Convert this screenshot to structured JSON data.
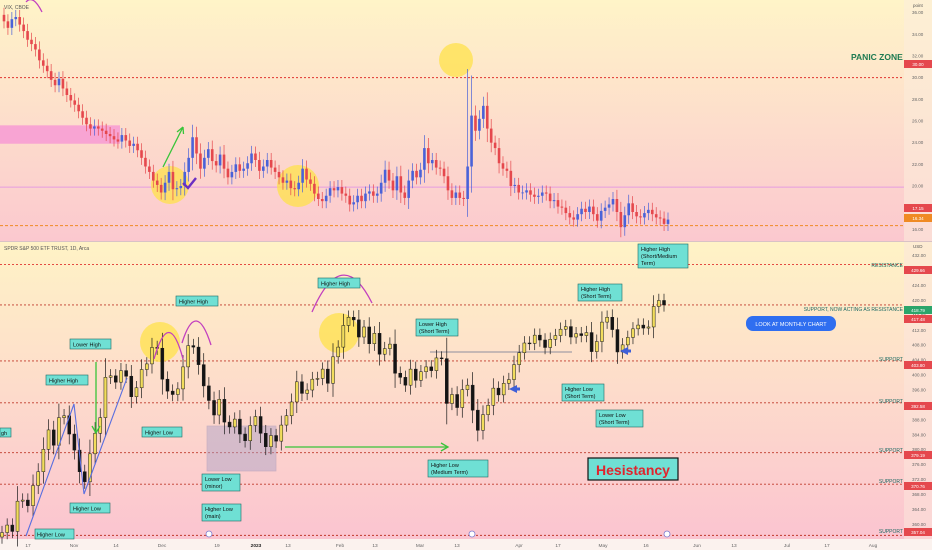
{
  "colors": {
    "up": "#4a62d8",
    "down": "#e5484d",
    "yellow_up": "#f2dd5c",
    "resistance_line": "#e0342f",
    "support_line": "#c0392b",
    "label_fill": "#6fe0d4",
    "label_border": "#1d6a63",
    "panic": "#1e7a52",
    "callout": "#2f6ef0",
    "arc": "#c23fbf",
    "arrow_green": "#39c43a",
    "arrow_blue": "#3f5fd8"
  },
  "top_panel": {
    "symbol": "VIX, CBOE",
    "unit": "point",
    "annotation": "PANIC ZONE",
    "price_badges": [
      "30.00",
      "17.15",
      "16.34"
    ],
    "chart_data": {
      "type": "candlestick",
      "title": "VIX, CBOE",
      "y_ticks": [
        16,
        18,
        20,
        22,
        24,
        26,
        28,
        30,
        32,
        34,
        36
      ],
      "ylim": [
        15.2,
        36.8
      ],
      "levels": [
        30.0,
        19.9,
        16.34
      ],
      "pink_zone": [
        23.9,
        25.6
      ],
      "closes": [
        35.2,
        34.6,
        35.4,
        35.6,
        34.9,
        34.3,
        33.5,
        33.1,
        32.6,
        31.6,
        31.1,
        30.6,
        29.8,
        29.3,
        29.9,
        29.0,
        28.4,
        27.9,
        27.5,
        26.9,
        26.3,
        25.7,
        25.3,
        25.5,
        25.3,
        25.1,
        24.8,
        24.6,
        24.3,
        24.1,
        24.7,
        24.2,
        23.7,
        23.9,
        23.3,
        22.6,
        21.8,
        21.3,
        20.5,
        20.1,
        19.4,
        20.3,
        21.3,
        19.7,
        19.8,
        20.0,
        21.3,
        22.6,
        24.5,
        23.0,
        21.6,
        22.6,
        23.4,
        22.3,
        21.9,
        22.9,
        21.6,
        20.8,
        21.3,
        22.0,
        21.4,
        21.6,
        22.1,
        23.0,
        22.4,
        21.4,
        21.8,
        22.4,
        21.7,
        21.3,
        20.8,
        20.3,
        20.5,
        19.8,
        19.7,
        20.3,
        21.6,
        20.6,
        20.2,
        19.3,
        18.8,
        18.6,
        19.1,
        19.8,
        19.6,
        19.9,
        19.3,
        19.1,
        18.3,
        18.5,
        19.1,
        18.6,
        19.3,
        19.5,
        19.1,
        19.3,
        20.3,
        21.5,
        20.5,
        19.6,
        20.9,
        19.4,
        18.9,
        20.5,
        21.4,
        20.8,
        21.5,
        23.5,
        22.1,
        22.4,
        21.7,
        21.6,
        20.9,
        19.6,
        18.9,
        19.4,
        18.9,
        18.8,
        21.8,
        26.5,
        25.1,
        26.2,
        27.4,
        25.3,
        24.0,
        23.5,
        22.1,
        21.6,
        21.4,
        20.0,
        20.1,
        19.4,
        19.4,
        19.6,
        19.2,
        19.0,
        19.1,
        19.4,
        19.3,
        18.6,
        18.7,
        18.1,
        18.0,
        17.5,
        17.1,
        16.9,
        17.4,
        17.9,
        17.6,
        18.1,
        17.4,
        16.8,
        17.7,
        18.0,
        18.3,
        18.8,
        17.6,
        16.2,
        17.3,
        18.4,
        17.6,
        17.2,
        17.1,
        17.5,
        17.8,
        17.4,
        17.1,
        17.0,
        16.5,
        16.9
      ]
    }
  },
  "bottom_panel": {
    "symbol": "SPDR S&P 500 ETF TRUST, 1D, Arca",
    "unit": "USD",
    "price_badges": [
      "429.66",
      "418.79",
      "417.48",
      "403.80",
      "392.58",
      "379.19",
      "370.76",
      "357.04"
    ],
    "level_labels": {
      "resistance": "RESISTANCE",
      "support_resistance": "SUPPORT, NOW ACTING AS RESISTANCE",
      "support": "SUPPORT"
    },
    "callout": "LOOK AT MONTHLY CHART",
    "headline": "Hesistancy",
    "labels": {
      "higher_high_left": "Higher High",
      "lower_high": "Lower High",
      "higher_high_nov": "Higher High",
      "higher_high_feb": "Higher High",
      "lower_high_st": [
        "Lower High",
        "(Short Term)"
      ],
      "higher_high_st": [
        "Higher High",
        "(Short Term)"
      ],
      "higher_high_smt": [
        "Higher High",
        "(Short/Medium",
        "Term)"
      ],
      "higher_low_dec": "Higher Low",
      "higher_low_nov": "Higher Low",
      "higher_low_oct": "Higher Low",
      "lower_low_minor": [
        "Lower Low",
        "(minor)"
      ],
      "higher_low_main": [
        "Higher Low",
        "(main)"
      ],
      "higher_low_mt": [
        "Higher Low",
        "(Medium Term)"
      ],
      "higher_low_st": [
        "Higher Low",
        "(Short Term)"
      ],
      "lower_low_st": [
        "Lower Low",
        "(Short Term)"
      ],
      "edge_fragment": "gh"
    },
    "chart_data": {
      "type": "candlestick",
      "title": "SPDR S&P 500 ETF TRUST, 1D, Arca",
      "y_ticks": [
        360,
        364,
        368,
        372,
        376,
        380,
        384,
        388,
        392,
        396,
        400,
        404,
        408,
        412,
        416,
        420,
        424,
        428,
        432
      ],
      "ylim": [
        355.8,
        434.6
      ],
      "levels": [
        429.66,
        418.79,
        403.8,
        392.58,
        379.19,
        370.76,
        357.04
      ],
      "closes": [
        357.8,
        359.8,
        358.1,
        366.2,
        366.5,
        365.0,
        370.4,
        374.1,
        380.1,
        385.3,
        381.2,
        388.6,
        389.1,
        384.2,
        379.9,
        374.1,
        371.4,
        378.9,
        384.4,
        388.6,
        399.4,
        399.8,
        398.1,
        401.2,
        399.7,
        394.2,
        396.6,
        401.5,
        403.0,
        407.4,
        407.2,
        398.9,
        395.7,
        394.8,
        396.3,
        402.2,
        407.9,
        407.5,
        402.8,
        397.1,
        393.2,
        389.3,
        393.5,
        387.4,
        386.1,
        388.2,
        384.2,
        382.4,
        386.5,
        388.9,
        384.4,
        380.8,
        383.8,
        382.3,
        386.6,
        389.1,
        392.8,
        398.2,
        395.1,
        396.0,
        398.9,
        399.1,
        401.6,
        397.8,
        404.9,
        407.5,
        413.3,
        415.5,
        414.8,
        410.2,
        412.9,
        408.4,
        411.2,
        405.6,
        407.1,
        408.3,
        400.5,
        399.4,
        397.3,
        401.6,
        398.6,
        400.9,
        402.2,
        401.2,
        404.6,
        404.4,
        392.4,
        394.8,
        391.3,
        396.1,
        397.3,
        390.6,
        385.2,
        389.4,
        391.9,
        396.5,
        394.7,
        397.8,
        398.8,
        402.8,
        406.0,
        408.6,
        408.5,
        410.7,
        409.4,
        407.4,
        409.6,
        410.6,
        412.3,
        413.0,
        410.2,
        411.1,
        410.6,
        411.4,
        406.3,
        409.0,
        414.2,
        415.5,
        412.2,
        406.2,
        408.1,
        410.1,
        412.4,
        413.4,
        412.6,
        412.9,
        418.4,
        420.0,
        418.8
      ]
    }
  },
  "x_axis": {
    "ticks": [
      "17",
      "Nov",
      "14",
      "Dec",
      "19",
      "2023",
      "13",
      "Feb",
      "13",
      "Mar",
      "13",
      "Apr",
      "17",
      "May",
      "16",
      "Jun",
      "13",
      "Jul",
      "17",
      "Aug"
    ]
  }
}
